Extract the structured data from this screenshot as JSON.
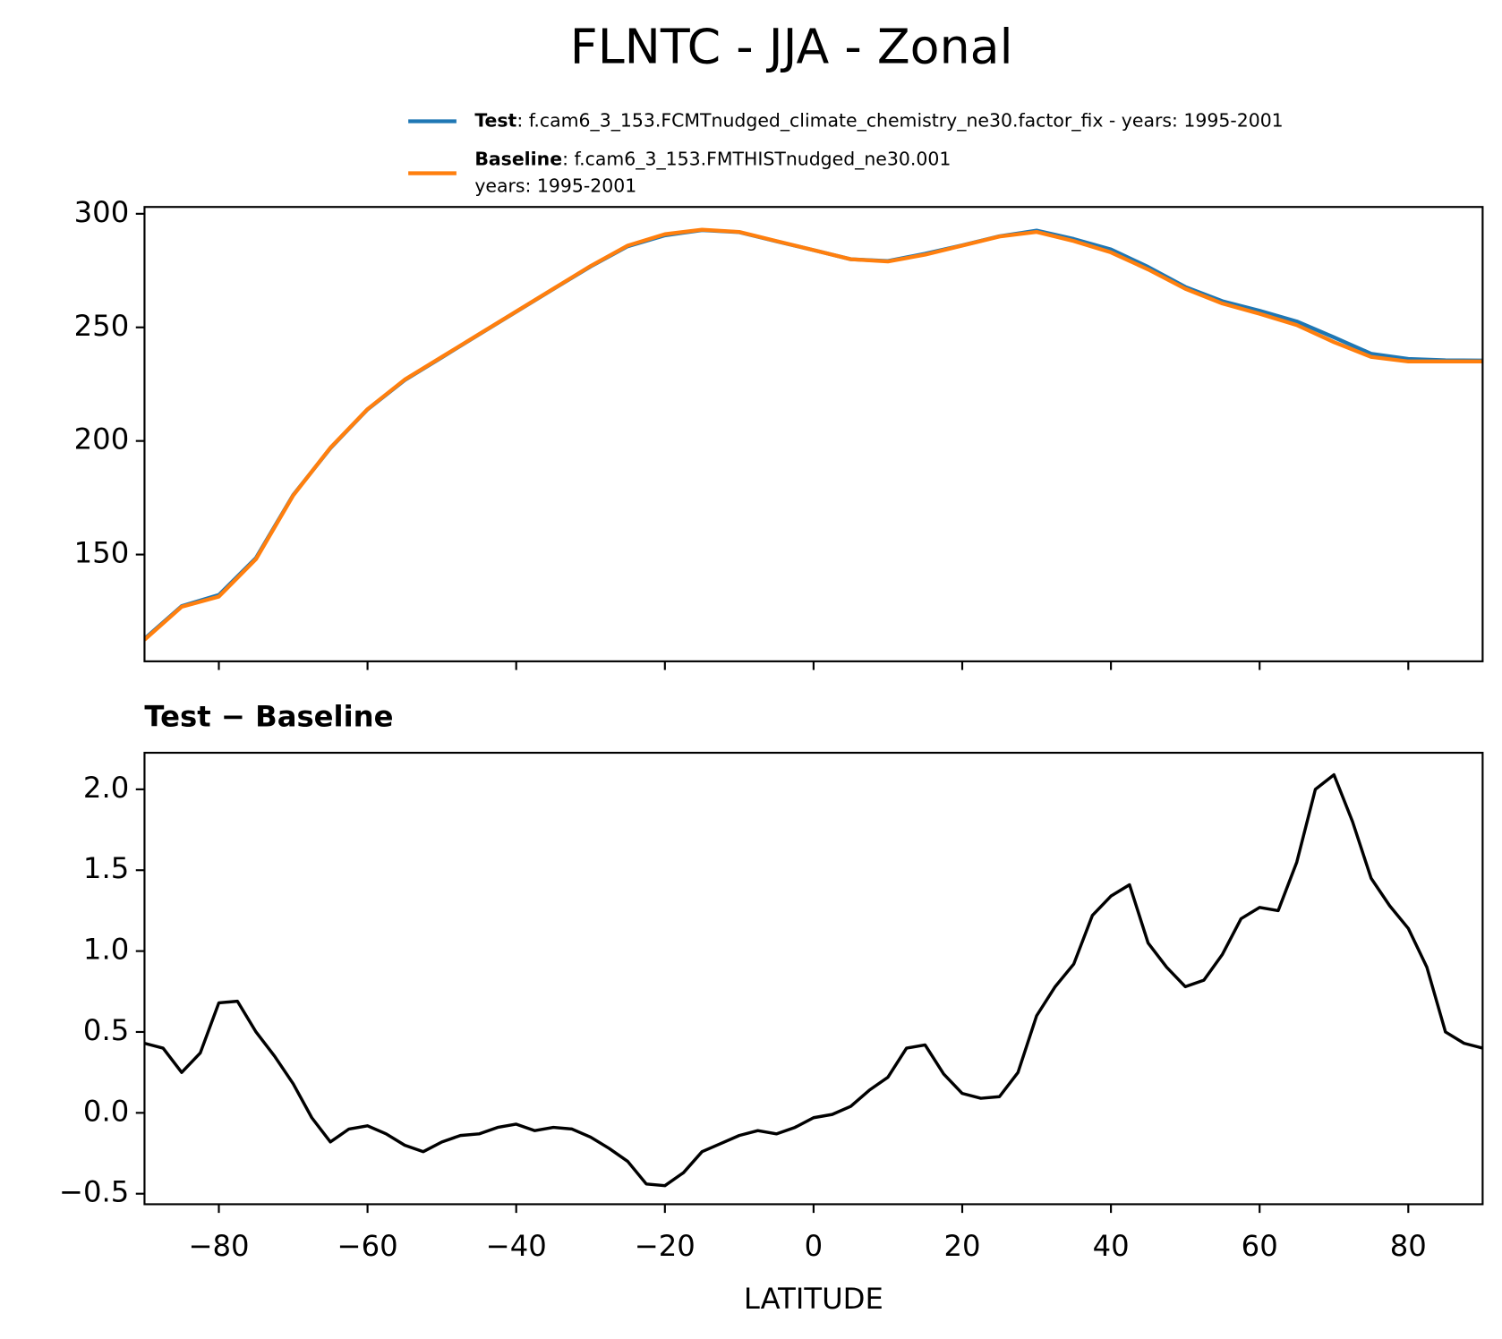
{
  "chart_data": [
    {
      "type": "line",
      "title": "FLNTC - JJA - Zonal",
      "x": [
        -90,
        -85,
        -80,
        -75,
        -70,
        -65,
        -60,
        -55,
        -50,
        -45,
        -40,
        -35,
        -30,
        -25,
        -20,
        -15,
        -10,
        -5,
        0,
        5,
        10,
        15,
        20,
        25,
        30,
        35,
        40,
        45,
        50,
        55,
        60,
        65,
        70,
        75,
        80,
        85,
        90
      ],
      "series": [
        {
          "name": "Test",
          "label_lines": [
            ": f.cam6_3_153.FCMTnudged_climate_chemistry_ne30.factor_fix - years: 1995-2001"
          ],
          "color": "#1f77b4",
          "values": [
            112.9,
            127.3,
            132.2,
            148.5,
            176.2,
            196.8,
            213.9,
            226.8,
            236.8,
            246.9,
            256.9,
            266.9,
            276.8,
            285.7,
            290.5,
            292.8,
            291.9,
            287.9,
            284,
            280,
            279.2,
            282.4,
            286.1,
            290.1,
            292.6,
            288.9,
            284.3,
            276.6,
            267.8,
            261.5,
            257.3,
            252.6,
            245.6,
            238.4,
            236.1,
            235.5,
            235.4
          ]
        },
        {
          "name": "Baseline",
          "label_lines": [
            ": f.cam6_3_153.FMTHISTnudged_ne30.001",
            "years: 1995-2001"
          ],
          "color": "#ff7f0e",
          "values": [
            112.5,
            127,
            131.5,
            148,
            176,
            197,
            214,
            227,
            237,
            247,
            257,
            267,
            277,
            286,
            291,
            293,
            292,
            288,
            284,
            280,
            279,
            282,
            286,
            290,
            292,
            288,
            283,
            275.5,
            267,
            260.5,
            256,
            251,
            243.5,
            237,
            235,
            235,
            235
          ]
        }
      ],
      "xlim": [
        -90,
        90
      ],
      "xticks": [
        -80,
        -60,
        -40,
        -20,
        0,
        20,
        40,
        60,
        80
      ],
      "ylim": [
        103,
        303
      ],
      "yticks": [
        150,
        200,
        250,
        300
      ],
      "legend": "upper"
    },
    {
      "type": "line",
      "title": "Test − Baseline",
      "xlabel": "LATITUDE",
      "x": [
        -90,
        -87.5,
        -85,
        -82.5,
        -80,
        -77.5,
        -75,
        -72.5,
        -70,
        -67.5,
        -65,
        -62.5,
        -60,
        -57.5,
        -55,
        -52.5,
        -50,
        -47.5,
        -45,
        -42.5,
        -40,
        -37.5,
        -35,
        -32.5,
        -30,
        -27.5,
        -25,
        -22.5,
        -20,
        -17.5,
        -15,
        -12.5,
        -10,
        -7.5,
        -5,
        -2.5,
        0,
        2.5,
        5,
        7.5,
        10,
        12.5,
        15,
        17.5,
        20,
        22.5,
        25,
        27.5,
        30,
        32.5,
        35,
        37.5,
        40,
        42.5,
        45,
        47.5,
        50,
        52.5,
        55,
        57.5,
        60,
        62.5,
        65,
        67.5,
        70,
        72.5,
        75,
        77.5,
        80,
        82.5,
        85,
        87.5,
        90
      ],
      "series": [
        {
          "name": "Test − Baseline",
          "color": "#000000",
          "values": [
            0.43,
            0.4,
            0.25,
            0.37,
            0.68,
            0.69,
            0.5,
            0.35,
            0.18,
            -0.03,
            -0.18,
            -0.1,
            -0.08,
            -0.13,
            -0.2,
            -0.24,
            -0.18,
            -0.14,
            -0.13,
            -0.09,
            -0.07,
            -0.11,
            -0.09,
            -0.1,
            -0.15,
            -0.22,
            -0.3,
            -0.44,
            -0.45,
            -0.37,
            -0.24,
            -0.19,
            -0.14,
            -0.11,
            -0.13,
            -0.09,
            -0.03,
            -0.01,
            0.04,
            0.14,
            0.22,
            0.4,
            0.42,
            0.24,
            0.12,
            0.09,
            0.1,
            0.25,
            0.6,
            0.78,
            0.92,
            1.22,
            1.34,
            1.41,
            1.05,
            0.9,
            0.78,
            0.82,
            0.98,
            1.2,
            1.27,
            1.25,
            1.55,
            2.0,
            2.09,
            1.8,
            1.45,
            1.28,
            1.14,
            0.9,
            0.5,
            0.43,
            0.4
          ]
        }
      ],
      "xlim": [
        -90,
        90
      ],
      "xticks": [
        {
          "value": -80,
          "label": "−80"
        },
        {
          "value": -60,
          "label": "−60"
        },
        {
          "value": -40,
          "label": "−40"
        },
        {
          "value": -20,
          "label": "−20"
        },
        0,
        20,
        40,
        60,
        80
      ],
      "ylim": [
        -0.565,
        2.226
      ],
      "yticks": [
        {
          "value": -0.5,
          "label": "−0.5"
        },
        {
          "value": 0,
          "label": "0.0"
        },
        0.5,
        {
          "value": 1,
          "label": "1.0"
        },
        1.5,
        {
          "value": 2,
          "label": "2.0"
        }
      ]
    }
  ]
}
